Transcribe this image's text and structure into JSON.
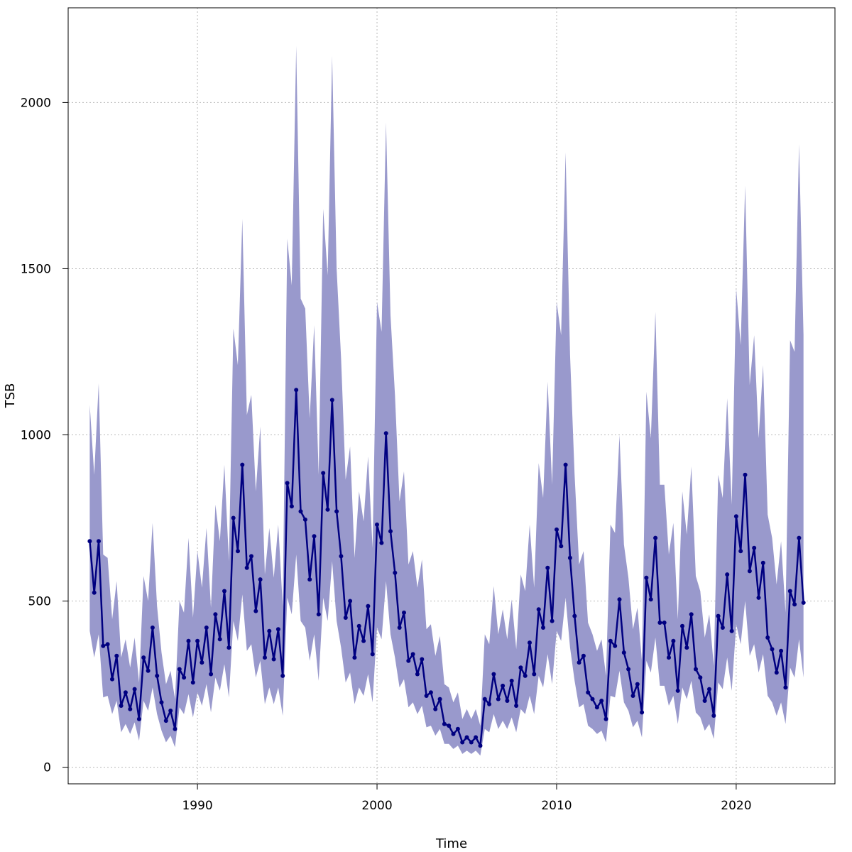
{
  "chart_data": {
    "type": "line",
    "title": "",
    "xlabel": "Time",
    "ylabel": "TSB",
    "xlim": [
      1982.8,
      2025.5
    ],
    "ylim": [
      -50,
      2285
    ],
    "xticks": [
      1990,
      2000,
      2010,
      2020
    ],
    "yticks": [
      0,
      500,
      1000,
      1500,
      2000
    ],
    "grid": true,
    "colors": {
      "line": "#000080",
      "band": "#9999cc",
      "grid": "#b9b9b9"
    },
    "x": [
      1984.0,
      1984.25,
      1984.5,
      1984.75,
      1985.0,
      1985.25,
      1985.5,
      1985.75,
      1986.0,
      1986.25,
      1986.5,
      1986.75,
      1987.0,
      1987.25,
      1987.5,
      1987.75,
      1988.0,
      1988.25,
      1988.5,
      1988.75,
      1989.0,
      1989.25,
      1989.5,
      1989.75,
      1990.0,
      1990.25,
      1990.5,
      1990.75,
      1991.0,
      1991.25,
      1991.5,
      1991.75,
      1992.0,
      1992.25,
      1992.5,
      1992.75,
      1993.0,
      1993.25,
      1993.5,
      1993.75,
      1994.0,
      1994.25,
      1994.5,
      1994.75,
      1995.0,
      1995.25,
      1995.5,
      1995.75,
      1996.0,
      1996.25,
      1996.5,
      1996.75,
      1997.0,
      1997.25,
      1997.5,
      1997.75,
      1998.0,
      1998.25,
      1998.5,
      1998.75,
      1999.0,
      1999.25,
      1999.5,
      1999.75,
      2000.0,
      2000.25,
      2000.5,
      2000.75,
      2001.0,
      2001.25,
      2001.5,
      2001.75,
      2002.0,
      2002.25,
      2002.5,
      2002.75,
      2003.0,
      2003.25,
      2003.5,
      2003.75,
      2004.0,
      2004.25,
      2004.5,
      2004.75,
      2005.0,
      2005.25,
      2005.5,
      2005.75,
      2006.0,
      2006.25,
      2006.5,
      2006.75,
      2007.0,
      2007.25,
      2007.5,
      2007.75,
      2008.0,
      2008.25,
      2008.5,
      2008.75,
      2009.0,
      2009.25,
      2009.5,
      2009.75,
      2010.0,
      2010.25,
      2010.5,
      2010.75,
      2011.0,
      2011.25,
      2011.5,
      2011.75,
      2012.0,
      2012.25,
      2012.5,
      2012.75,
      2013.0,
      2013.25,
      2013.5,
      2013.75,
      2014.0,
      2014.25,
      2014.5,
      2014.75,
      2015.0,
      2015.25,
      2015.5,
      2015.75,
      2016.0,
      2016.25,
      2016.5,
      2016.75,
      2017.0,
      2017.25,
      2017.5,
      2017.75,
      2018.0,
      2018.25,
      2018.5,
      2018.75,
      2019.0,
      2019.25,
      2019.5,
      2019.75,
      2020.0,
      2020.25,
      2020.5,
      2020.75,
      2021.0,
      2021.25,
      2021.5,
      2021.75,
      2022.0,
      2022.25,
      2022.5,
      2022.75,
      2023.0,
      2023.25,
      2023.5,
      2023.75
    ],
    "series": [
      {
        "values": [
          680,
          525,
          680,
          365,
          370,
          265,
          335,
          185,
          225,
          175,
          235,
          145,
          330,
          290,
          420,
          275,
          195,
          140,
          170,
          115,
          295,
          270,
          380,
          255,
          380,
          315,
          420,
          280,
          460,
          385,
          530,
          360,
          750,
          650,
          910,
          600,
          635,
          470,
          565,
          330,
          410,
          325,
          415,
          275,
          855,
          785,
          1135,
          770,
          745,
          565,
          695,
          460,
          885,
          775,
          1105,
          770,
          635,
          450,
          500,
          330,
          425,
          380,
          485,
          340,
          730,
          675,
          1005,
          710,
          585,
          420,
          465,
          320,
          340,
          280,
          325,
          215,
          225,
          175,
          205,
          130,
          125,
          100,
          115,
          75,
          90,
          75,
          90,
          65,
          205,
          190,
          280,
          205,
          245,
          200,
          260,
          185,
          300,
          275,
          375,
          280,
          475,
          420,
          600,
          440,
          715,
          665,
          910,
          630,
          455,
          315,
          335,
          225,
          205,
          180,
          200,
          145,
          380,
          365,
          505,
          345,
          295,
          215,
          250,
          165,
          570,
          505,
          690,
          435,
          435,
          330,
          380,
          230,
          425,
          360,
          460,
          295,
          270,
          200,
          235,
          155,
          455,
          420,
          580,
          410,
          755,
          650,
          880,
          590,
          660,
          510,
          615,
          390,
          355,
          285,
          350,
          240,
          530,
          490,
          690,
          495
        ],
        "lower": [
          410,
          330,
          400,
          210,
          215,
          160,
          200,
          105,
          130,
          100,
          135,
          80,
          200,
          170,
          240,
          160,
          110,
          75,
          95,
          60,
          180,
          160,
          220,
          150,
          225,
          185,
          250,
          165,
          270,
          230,
          310,
          210,
          440,
          380,
          520,
          350,
          370,
          270,
          320,
          190,
          240,
          190,
          240,
          155,
          510,
          460,
          640,
          440,
          420,
          320,
          400,
          260,
          510,
          440,
          620,
          440,
          360,
          255,
          285,
          190,
          240,
          215,
          280,
          195,
          420,
          385,
          560,
          400,
          330,
          240,
          265,
          180,
          195,
          160,
          185,
          120,
          125,
          95,
          115,
          70,
          70,
          55,
          65,
          40,
          50,
          40,
          50,
          35,
          115,
          105,
          160,
          115,
          140,
          115,
          150,
          105,
          175,
          160,
          215,
          160,
          275,
          240,
          340,
          250,
          410,
          380,
          510,
          360,
          260,
          180,
          190,
          125,
          115,
          100,
          110,
          75,
          215,
          210,
          290,
          195,
          170,
          120,
          140,
          90,
          320,
          285,
          390,
          245,
          245,
          185,
          215,
          130,
          240,
          205,
          260,
          165,
          150,
          110,
          130,
          85,
          255,
          235,
          330,
          230,
          430,
          370,
          500,
          335,
          370,
          285,
          340,
          215,
          195,
          155,
          195,
          130,
          300,
          270,
          385,
          270
        ],
        "upper": [
          1090,
          880,
          1155,
          640,
          630,
          445,
          560,
          330,
          385,
          300,
          390,
          255,
          575,
          500,
          735,
          485,
          345,
          250,
          290,
          205,
          500,
          465,
          690,
          450,
          650,
          540,
          720,
          480,
          790,
          680,
          910,
          620,
          1320,
          1210,
          1650,
          1060,
          1120,
          830,
          1025,
          580,
          720,
          570,
          730,
          485,
          1590,
          1450,
          2170,
          1410,
          1380,
          1050,
          1330,
          880,
          1680,
          1480,
          2140,
          1500,
          1230,
          865,
          965,
          630,
          830,
          740,
          935,
          660,
          1400,
          1310,
          1940,
          1360,
          1120,
          800,
          890,
          610,
          650,
          540,
          625,
          415,
          430,
          335,
          395,
          250,
          240,
          195,
          225,
          145,
          175,
          145,
          175,
          125,
          400,
          370,
          545,
          400,
          475,
          385,
          505,
          355,
          580,
          530,
          730,
          540,
          915,
          810,
          1160,
          850,
          1400,
          1300,
          1850,
          1240,
          880,
          610,
          650,
          435,
          400,
          350,
          385,
          275,
          730,
          705,
          1000,
          670,
          570,
          415,
          480,
          320,
          1130,
          990,
          1370,
          850,
          850,
          640,
          735,
          445,
          830,
          700,
          905,
          575,
          530,
          390,
          460,
          305,
          880,
          810,
          1110,
          790,
          1440,
          1270,
          1750,
          1150,
          1300,
          990,
          1210,
          760,
          690,
          550,
          680,
          465,
          1285,
          1250,
          1875,
          1300
        ]
      }
    ]
  }
}
